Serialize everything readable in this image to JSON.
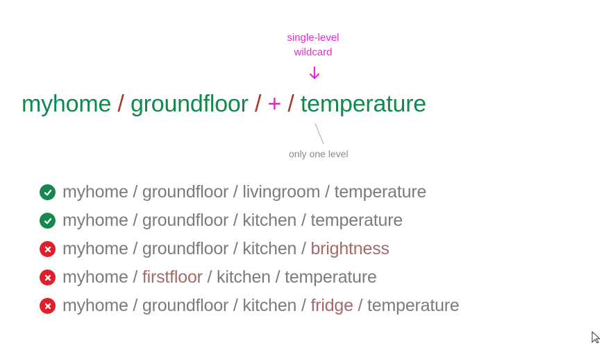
{
  "diagram": {
    "annotation_top_line1": "single-level",
    "annotation_top_line2": "wildcard",
    "topic": {
      "part1": "myhome",
      "sep1": " / ",
      "part2": "groundfloor",
      "sep2": " / ",
      "wildcard": "+",
      "sep3": " / ",
      "part4": "temperature"
    },
    "annotation_bottom": "only one level",
    "examples": [
      {
        "status": "match",
        "icon": "check-circle-icon",
        "segments": [
          {
            "text": "myhome / groundfloor / livingroom / temperature",
            "highlight": false
          }
        ]
      },
      {
        "status": "match",
        "icon": "check-circle-icon",
        "segments": [
          {
            "text": "myhome / groundfloor / kitchen / temperature",
            "highlight": false
          }
        ]
      },
      {
        "status": "no-match",
        "icon": "x-circle-icon",
        "segments": [
          {
            "text": "myhome / groundfloor / kitchen / ",
            "highlight": false
          },
          {
            "text": "brightness",
            "highlight": true
          }
        ]
      },
      {
        "status": "no-match",
        "icon": "x-circle-icon",
        "segments": [
          {
            "text": "myhome / ",
            "highlight": false
          },
          {
            "text": "firstfloor",
            "highlight": true
          },
          {
            "text": " / kitchen / temperature",
            "highlight": false
          }
        ]
      },
      {
        "status": "no-match",
        "icon": "x-circle-icon",
        "segments": [
          {
            "text": "myhome / groundfloor / kitchen / ",
            "highlight": false
          },
          {
            "text": "fridge",
            "highlight": true
          },
          {
            "text": " / temperature",
            "highlight": false
          }
        ]
      }
    ]
  },
  "colors": {
    "topic_green": "#0f8a4e",
    "slash_red": "#a7392c",
    "wildcard_magenta": "#d82ebc",
    "annotation_magenta": "#e52bd6",
    "match_green": "#14884d",
    "mismatch_red": "#e11e2a",
    "example_gray": "#7b7b7b",
    "highlight_brown": "#a36a6a",
    "note_gray": "#8a8a8a"
  }
}
